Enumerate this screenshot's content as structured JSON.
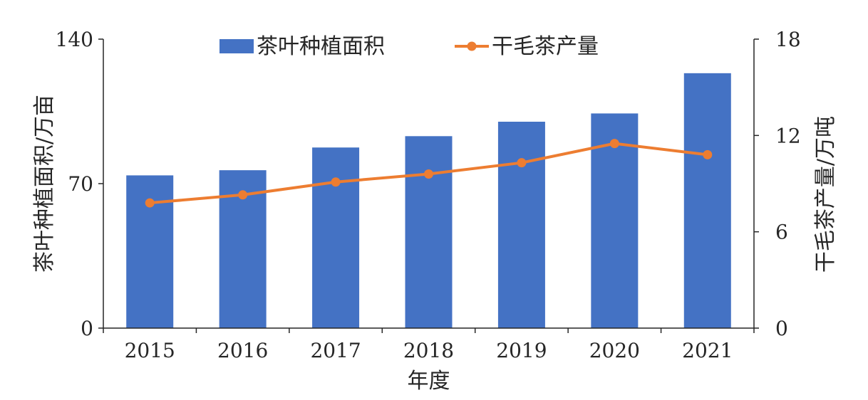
{
  "chart_data": {
    "type": "bar",
    "categories": [
      "2015",
      "2016",
      "2017",
      "2018",
      "2019",
      "2020",
      "2021"
    ],
    "xlabel": "年度",
    "y_left": {
      "label": "茶叶种植面积/万亩",
      "ylim": [
        0,
        140
      ],
      "ticks": [
        "0",
        "70",
        "140"
      ]
    },
    "y_right": {
      "label": "干毛茶产量/万吨",
      "ylim": [
        0,
        18
      ],
      "ticks": [
        "0",
        "6",
        "12",
        "18"
      ]
    },
    "series": [
      {
        "name": "茶叶种植面积",
        "type": "bar",
        "axis": "left",
        "color": "#4472C4",
        "values": [
          74,
          76.5,
          87.5,
          93,
          100,
          104,
          123.5
        ]
      },
      {
        "name": "干毛茶产量",
        "type": "line",
        "axis": "right",
        "color": "#ED7D31",
        "values": [
          7.8,
          8.3,
          9.1,
          9.6,
          10.3,
          11.5,
          10.8
        ]
      }
    ],
    "legend": "top-center",
    "grid": false
  }
}
